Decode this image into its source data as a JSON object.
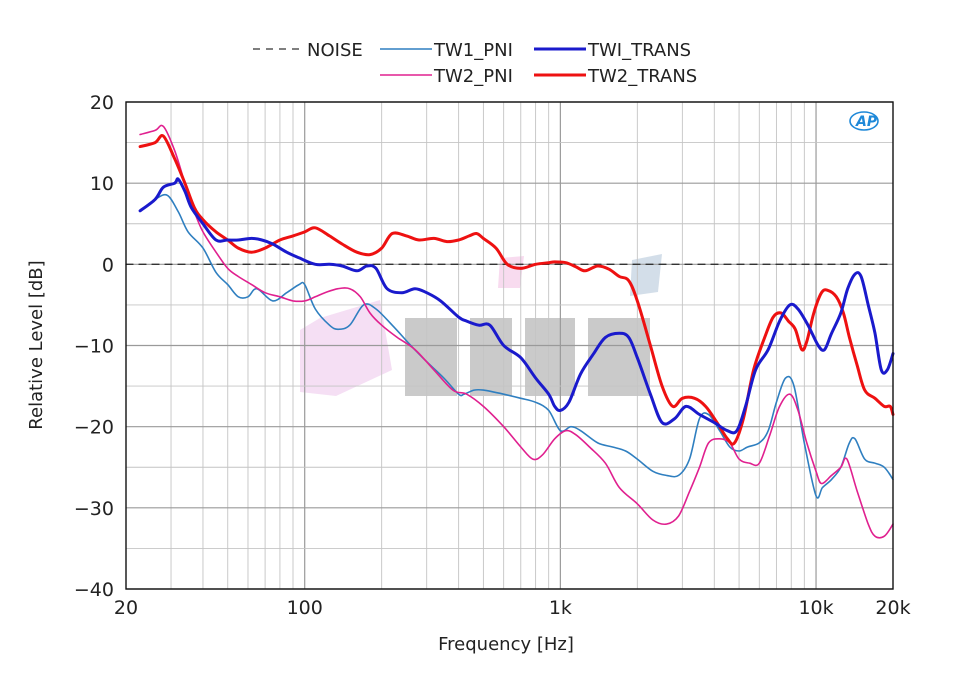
{
  "chart_data": {
    "type": "line",
    "xscale": "log",
    "xlabel": "Frequency [Hz]",
    "ylabel": "Relative Level [dB]",
    "xlim": [
      20,
      20000
    ],
    "ylim": [
      -40,
      20
    ],
    "x_ticks": [
      {
        "value": 20,
        "label": "20"
      },
      {
        "value": 100,
        "label": "100"
      },
      {
        "value": 1000,
        "label": "1k"
      },
      {
        "value": 10000,
        "label": "10k"
      },
      {
        "value": 20000,
        "label": "20k"
      }
    ],
    "y_ticks": [
      {
        "value": 20,
        "label": "20"
      },
      {
        "value": 10,
        "label": "10"
      },
      {
        "value": 0,
        "label": "0"
      },
      {
        "value": -10,
        "label": "-10"
      },
      {
        "value": -20,
        "label": "-20"
      },
      {
        "value": -30,
        "label": "-30"
      },
      {
        "value": -40,
        "label": "-40"
      }
    ],
    "grid": true,
    "legend_position": "top",
    "logo": "AP",
    "series": [
      {
        "name": "NOISE",
        "color": "#333333",
        "style": "dashed",
        "width": 1.3,
        "points": [
          [
            20,
            0
          ],
          [
            20000,
            0
          ]
        ]
      },
      {
        "name": "TW1_PNI",
        "color": "#2f7fc0",
        "style": "solid",
        "width": 1.6,
        "points": [
          [
            22.7,
            6.6
          ],
          [
            26,
            8
          ],
          [
            29,
            8.5
          ],
          [
            32,
            6.5
          ],
          [
            35,
            4
          ],
          [
            40,
            2
          ],
          [
            45,
            -1
          ],
          [
            50,
            -2.5
          ],
          [
            55,
            -4
          ],
          [
            60,
            -4
          ],
          [
            65,
            -3
          ],
          [
            75,
            -4.5
          ],
          [
            85,
            -3.5
          ],
          [
            95,
            -2.5
          ],
          [
            100,
            -2.5
          ],
          [
            110,
            -5.5
          ],
          [
            125,
            -7.5
          ],
          [
            135,
            -8
          ],
          [
            150,
            -7.5
          ],
          [
            170,
            -5
          ],
          [
            190,
            -5.5
          ],
          [
            220,
            -7.5
          ],
          [
            260,
            -10
          ],
          [
            300,
            -12
          ],
          [
            350,
            -14
          ],
          [
            400,
            -16
          ],
          [
            420,
            -16
          ],
          [
            460,
            -15.5
          ],
          [
            500,
            -15.5
          ],
          [
            600,
            -16
          ],
          [
            700,
            -16.5
          ],
          [
            800,
            -17
          ],
          [
            900,
            -18
          ],
          [
            1000,
            -20.5
          ],
          [
            1100,
            -20
          ],
          [
            1200,
            -20.5
          ],
          [
            1400,
            -22
          ],
          [
            1600,
            -22.5
          ],
          [
            1800,
            -23
          ],
          [
            2000,
            -24
          ],
          [
            2300,
            -25.5
          ],
          [
            2600,
            -26
          ],
          [
            2900,
            -26
          ],
          [
            3200,
            -24
          ],
          [
            3500,
            -19
          ],
          [
            3800,
            -18.5
          ],
          [
            4200,
            -20.5
          ],
          [
            4600,
            -22.5
          ],
          [
            5000,
            -23
          ],
          [
            5400,
            -22.5
          ],
          [
            6000,
            -22
          ],
          [
            6500,
            -20.5
          ],
          [
            7000,
            -17
          ],
          [
            7600,
            -14
          ],
          [
            8200,
            -15
          ],
          [
            9000,
            -22
          ],
          [
            10000,
            -28.5
          ],
          [
            10600,
            -27.5
          ],
          [
            11500,
            -26.5
          ],
          [
            12500,
            -25
          ],
          [
            13500,
            -22
          ],
          [
            14200,
            -21.5
          ],
          [
            15500,
            -24
          ],
          [
            17000,
            -24.5
          ],
          [
            18500,
            -25
          ],
          [
            20000,
            -26.5
          ]
        ]
      },
      {
        "name": "TW2_PNI",
        "color": "#e0208f",
        "style": "solid",
        "width": 1.6,
        "points": [
          [
            22.7,
            16
          ],
          [
            26,
            16.5
          ],
          [
            28,
            17
          ],
          [
            31,
            14
          ],
          [
            34,
            10
          ],
          [
            37,
            6.5
          ],
          [
            40,
            4
          ],
          [
            45,
            1.5
          ],
          [
            50,
            -0.5
          ],
          [
            55,
            -1.5
          ],
          [
            62,
            -2.5
          ],
          [
            70,
            -3.5
          ],
          [
            80,
            -4
          ],
          [
            90,
            -4.5
          ],
          [
            100,
            -4.5
          ],
          [
            110,
            -4
          ],
          [
            120,
            -3.5
          ],
          [
            135,
            -3
          ],
          [
            150,
            -3
          ],
          [
            165,
            -4
          ],
          [
            180,
            -6
          ],
          [
            200,
            -7.5
          ],
          [
            230,
            -9
          ],
          [
            270,
            -10.5
          ],
          [
            320,
            -13
          ],
          [
            380,
            -15.5
          ],
          [
            430,
            -16
          ],
          [
            500,
            -17.5
          ],
          [
            600,
            -20
          ],
          [
            700,
            -22.5
          ],
          [
            780,
            -24
          ],
          [
            850,
            -23.5
          ],
          [
            950,
            -21.5
          ],
          [
            1050,
            -20.5
          ],
          [
            1150,
            -21
          ],
          [
            1300,
            -22.5
          ],
          [
            1500,
            -24.5
          ],
          [
            1700,
            -27.5
          ],
          [
            2000,
            -29.5
          ],
          [
            2300,
            -31.5
          ],
          [
            2600,
            -32
          ],
          [
            2900,
            -31
          ],
          [
            3200,
            -28
          ],
          [
            3500,
            -25
          ],
          [
            3800,
            -22
          ],
          [
            4200,
            -21.5
          ],
          [
            4600,
            -22
          ],
          [
            5000,
            -24
          ],
          [
            5500,
            -24.5
          ],
          [
            6000,
            -24.5
          ],
          [
            6600,
            -21
          ],
          [
            7200,
            -17.5
          ],
          [
            7900,
            -16
          ],
          [
            8500,
            -18
          ],
          [
            9200,
            -22
          ],
          [
            10000,
            -25.5
          ],
          [
            10500,
            -27
          ],
          [
            11500,
            -26
          ],
          [
            12500,
            -25
          ],
          [
            13200,
            -24
          ],
          [
            14500,
            -28
          ],
          [
            16000,
            -32
          ],
          [
            17000,
            -33.5
          ],
          [
            18500,
            -33.5
          ],
          [
            20000,
            -32
          ]
        ]
      },
      {
        "name": "TWI_TRANS",
        "color": "#1a1acc",
        "style": "solid",
        "width": 3,
        "points": [
          [
            22.7,
            6.6
          ],
          [
            26,
            8
          ],
          [
            28,
            9.5
          ],
          [
            31,
            10
          ],
          [
            32,
            10.5
          ],
          [
            34,
            9
          ],
          [
            36,
            7
          ],
          [
            40,
            5
          ],
          [
            45,
            3
          ],
          [
            50,
            3
          ],
          [
            55,
            3
          ],
          [
            62,
            3.2
          ],
          [
            68,
            3
          ],
          [
            75,
            2.5
          ],
          [
            85,
            1.5
          ],
          [
            95,
            0.8
          ],
          [
            110,
            0
          ],
          [
            125,
            0
          ],
          [
            140,
            -0.2
          ],
          [
            160,
            -0.8
          ],
          [
            175,
            -0.2
          ],
          [
            190,
            -0.5
          ],
          [
            210,
            -3
          ],
          [
            240,
            -3.5
          ],
          [
            270,
            -3
          ],
          [
            300,
            -3.5
          ],
          [
            340,
            -4.5
          ],
          [
            400,
            -6.5
          ],
          [
            430,
            -7
          ],
          [
            480,
            -7.5
          ],
          [
            530,
            -7.5
          ],
          [
            600,
            -10
          ],
          [
            700,
            -11.5
          ],
          [
            800,
            -14
          ],
          [
            900,
            -16
          ],
          [
            950,
            -17.5
          ],
          [
            1000,
            -18
          ],
          [
            1080,
            -17
          ],
          [
            1200,
            -13.5
          ],
          [
            1350,
            -11
          ],
          [
            1500,
            -9
          ],
          [
            1700,
            -8.5
          ],
          [
            1850,
            -9
          ],
          [
            2000,
            -11.5
          ],
          [
            2250,
            -16
          ],
          [
            2500,
            -19.5
          ],
          [
            2800,
            -19
          ],
          [
            3100,
            -17.5
          ],
          [
            3500,
            -18.5
          ],
          [
            4000,
            -19.5
          ],
          [
            4500,
            -20.5
          ],
          [
            4900,
            -20.5
          ],
          [
            5300,
            -17.5
          ],
          [
            5800,
            -13
          ],
          [
            6500,
            -10.5
          ],
          [
            7200,
            -7
          ],
          [
            7900,
            -5
          ],
          [
            8500,
            -5.5
          ],
          [
            9300,
            -7.5
          ],
          [
            10200,
            -10
          ],
          [
            10800,
            -10.5
          ],
          [
            11500,
            -8.5
          ],
          [
            12500,
            -6
          ],
          [
            13300,
            -3
          ],
          [
            14200,
            -1.2
          ],
          [
            15000,
            -1.5
          ],
          [
            16000,
            -5
          ],
          [
            17000,
            -8.5
          ],
          [
            18000,
            -13
          ],
          [
            19000,
            -13
          ],
          [
            20000,
            -11
          ]
        ]
      },
      {
        "name": "TW2_TRANS",
        "color": "#ee1111",
        "style": "solid",
        "width": 3,
        "points": [
          [
            22.7,
            14.5
          ],
          [
            26,
            15
          ],
          [
            28,
            15.8
          ],
          [
            31,
            13
          ],
          [
            34,
            10
          ],
          [
            37,
            7
          ],
          [
            40,
            5.5
          ],
          [
            45,
            4
          ],
          [
            50,
            3
          ],
          [
            55,
            2
          ],
          [
            62,
            1.5
          ],
          [
            70,
            2
          ],
          [
            80,
            3
          ],
          [
            90,
            3.5
          ],
          [
            100,
            4
          ],
          [
            110,
            4.5
          ],
          [
            125,
            3.5
          ],
          [
            140,
            2.5
          ],
          [
            160,
            1.5
          ],
          [
            180,
            1.2
          ],
          [
            200,
            2
          ],
          [
            220,
            3.8
          ],
          [
            250,
            3.5
          ],
          [
            280,
            3
          ],
          [
            320,
            3.2
          ],
          [
            360,
            2.8
          ],
          [
            400,
            3
          ],
          [
            440,
            3.5
          ],
          [
            470,
            3.8
          ],
          [
            500,
            3.2
          ],
          [
            560,
            2
          ],
          [
            620,
            0
          ],
          [
            700,
            -0.5
          ],
          [
            800,
            0
          ],
          [
            900,
            0.2
          ],
          [
            950,
            0.3
          ],
          [
            1050,
            0.2
          ],
          [
            1150,
            -0.3
          ],
          [
            1250,
            -0.8
          ],
          [
            1400,
            -0.2
          ],
          [
            1550,
            -0.6
          ],
          [
            1700,
            -1.5
          ],
          [
            1850,
            -2
          ],
          [
            2000,
            -4.5
          ],
          [
            2250,
            -10
          ],
          [
            2500,
            -15
          ],
          [
            2750,
            -17.5
          ],
          [
            3000,
            -16.5
          ],
          [
            3350,
            -16.5
          ],
          [
            3700,
            -17.5
          ],
          [
            4100,
            -19.5
          ],
          [
            4500,
            -21.5
          ],
          [
            4800,
            -22
          ],
          [
            5200,
            -19
          ],
          [
            5700,
            -13
          ],
          [
            6300,
            -9
          ],
          [
            6800,
            -6.5
          ],
          [
            7300,
            -6
          ],
          [
            7800,
            -7
          ],
          [
            8300,
            -8
          ],
          [
            8800,
            -10.5
          ],
          [
            9200,
            -9.5
          ],
          [
            9800,
            -6
          ],
          [
            10500,
            -3.5
          ],
          [
            11100,
            -3.2
          ],
          [
            12000,
            -4
          ],
          [
            12800,
            -6
          ],
          [
            13500,
            -9
          ],
          [
            14500,
            -12.5
          ],
          [
            15500,
            -15.5
          ],
          [
            17000,
            -16.5
          ],
          [
            18500,
            -17.5
          ],
          [
            19500,
            -17.5
          ],
          [
            20000,
            -18.5
          ]
        ]
      }
    ]
  }
}
